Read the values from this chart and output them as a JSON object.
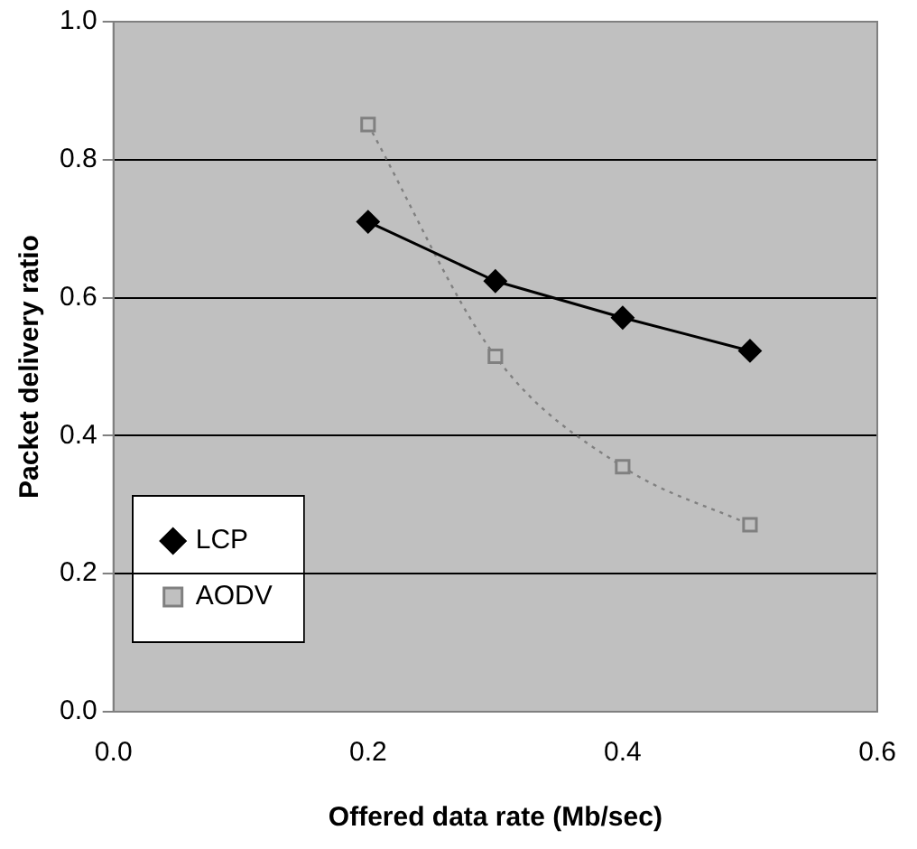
{
  "chart_data": {
    "type": "line",
    "xlabel": "Offered data rate (Mb/sec)",
    "ylabel": "Packet delivery ratio",
    "x": [
      0.2,
      0.3,
      0.4,
      0.5
    ],
    "series": [
      {
        "name": "LCP",
        "color": "#000000",
        "values": [
          0.71,
          0.624,
          0.571,
          0.523
        ],
        "marker": "diamond",
        "line_style": "solid"
      },
      {
        "name": "AODV",
        "color": "#808080",
        "values": [
          0.851,
          0.515,
          0.355,
          0.271
        ],
        "marker": "square",
        "line_style": "dotted"
      }
    ],
    "xlim": [
      0,
      0.6
    ],
    "xticks": [
      {
        "value": 0,
        "label": "0.0"
      },
      {
        "value": 0.2,
        "label": "0.2"
      },
      {
        "value": 0.4,
        "label": "0.4"
      },
      {
        "value": 0.6,
        "label": "0.6"
      }
    ],
    "ylim": [
      0,
      1
    ],
    "yticks": [
      {
        "value": 0,
        "label": "0.0"
      },
      {
        "value": 0.2,
        "label": "0.2"
      },
      {
        "value": 0.4,
        "label": "0.4"
      },
      {
        "value": 0.6,
        "label": "0.6"
      },
      {
        "value": 0.8,
        "label": "0.8"
      },
      {
        "value": 1,
        "label": "1.0"
      }
    ],
    "grid": "y",
    "legend": "bottom left"
  }
}
